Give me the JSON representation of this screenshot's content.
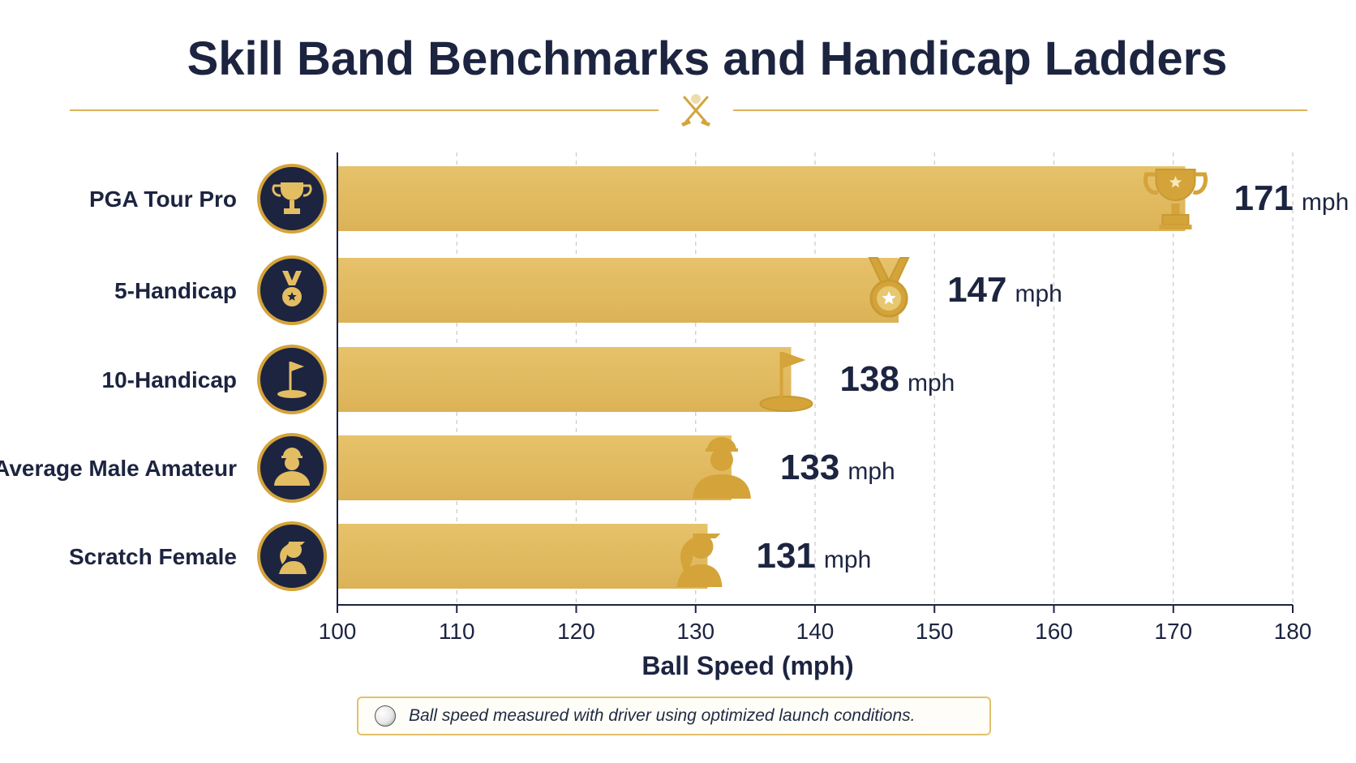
{
  "chart_data": {
    "type": "bar",
    "orientation": "horizontal",
    "title": "Skill Band Benchmarks and Handicap Ladders",
    "categories": [
      "PGA Tour Pro",
      "5-Handicap",
      "10-Handicap",
      "Average Male Amateur",
      "Scratch Female"
    ],
    "values": [
      171,
      147,
      138,
      133,
      131
    ],
    "value_unit": "mph",
    "icons": [
      "trophy-icon",
      "medal-icon",
      "flag-icon",
      "male-golfer-icon",
      "female-golfer-icon"
    ],
    "xlabel": "Ball Speed (mph)",
    "xlim": [
      100,
      180
    ],
    "xticks": [
      100,
      110,
      120,
      130,
      140,
      150,
      160,
      170,
      180
    ],
    "grid": "vertical dashed",
    "legend": "none",
    "colors": {
      "bar": "#e3bd62",
      "accent": "#d4a43a",
      "navy": "#1c2440",
      "text": "#1f2a44"
    }
  },
  "footnote": "Ball speed measured with driver using optimized launch conditions."
}
